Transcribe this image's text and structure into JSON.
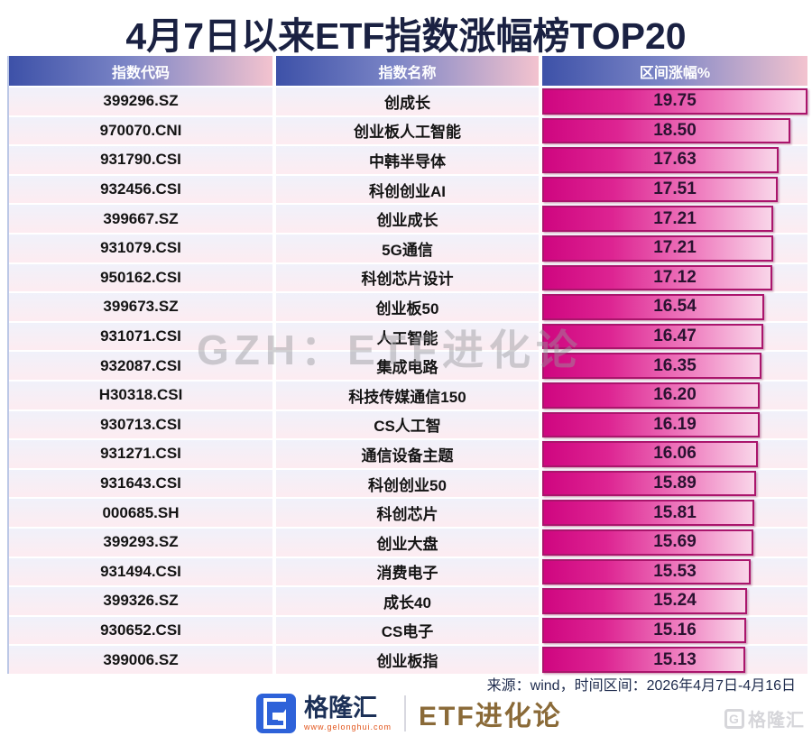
{
  "title": "4月7日以来ETF指数涨幅榜TOP20",
  "table": {
    "headers": [
      "指数代码",
      "指数名称",
      "区间涨幅%"
    ],
    "rows": [
      {
        "code": "399296.SZ",
        "name": "创成长",
        "value": "19.75"
      },
      {
        "code": "970070.CNI",
        "name": "创业板人工智能",
        "value": "18.50"
      },
      {
        "code": "931790.CSI",
        "name": "中韩半导体",
        "value": "17.63"
      },
      {
        "code": "932456.CSI",
        "name": "科创创业AI",
        "value": "17.51"
      },
      {
        "code": "399667.SZ",
        "name": "创业成长",
        "value": "17.21"
      },
      {
        "code": "931079.CSI",
        "name": "5G通信",
        "value": "17.21"
      },
      {
        "code": "950162.CSI",
        "name": "科创芯片设计",
        "value": "17.12"
      },
      {
        "code": "399673.SZ",
        "name": "创业板50",
        "value": "16.54"
      },
      {
        "code": "931071.CSI",
        "name": "人工智能",
        "value": "16.47"
      },
      {
        "code": "932087.CSI",
        "name": "集成电路",
        "value": "16.35"
      },
      {
        "code": "H30318.CSI",
        "name": "科技传媒通信150",
        "value": "16.20"
      },
      {
        "code": "930713.CSI",
        "name": "CS人工智",
        "value": "16.19"
      },
      {
        "code": "931271.CSI",
        "name": "通信设备主题",
        "value": "16.06"
      },
      {
        "code": "931643.CSI",
        "name": "科创创业50",
        "value": "15.89"
      },
      {
        "code": "000685.SH",
        "name": "科创芯片",
        "value": "15.81"
      },
      {
        "code": "399293.SZ",
        "name": "创业大盘",
        "value": "15.69"
      },
      {
        "code": "931494.CSI",
        "name": "消费电子",
        "value": "15.53"
      },
      {
        "code": "399326.SZ",
        "name": "成长40",
        "value": "15.24"
      },
      {
        "code": "930652.CSI",
        "name": "CS电子",
        "value": "15.16"
      },
      {
        "code": "399006.SZ",
        "name": "创业板指",
        "value": "15.13"
      }
    ]
  },
  "watermark": "GZH：ETF进化论",
  "footer": {
    "source": "来源：wind，时间区间：2026年4月7日-4月16日",
    "brand": "格隆汇",
    "brand_url": "www.gelonghui.com",
    "series_name": "ETF进化论",
    "corner_brand": "格隆汇"
  },
  "colors": {
    "title_text": "#1a2142",
    "header_gradient_left": "#3d51a8",
    "header_gradient_right": "#f3c3cf",
    "bar_deep": "#cf0680",
    "bar_light": "#f9d6e9",
    "bar_border": "#aa156c",
    "value_text": "#2a1230",
    "brand_blue": "#2e62d9",
    "brand_gold": "#8a6a38",
    "brand_url_orange": "#e2541a"
  },
  "chart_data": {
    "type": "bar",
    "title": "4月7日以来ETF指数涨幅榜TOP20",
    "categories": [
      "创成长",
      "创业板人工智能",
      "中韩半导体",
      "科创创业AI",
      "创业成长",
      "5G通信",
      "科创芯片设计",
      "创业板50",
      "人工智能",
      "集成电路",
      "科技传媒通信150",
      "CS人工智",
      "通信设备主题",
      "科创创业50",
      "科创芯片",
      "创业大盘",
      "消费电子",
      "成长40",
      "CS电子",
      "创业板指"
    ],
    "codes": [
      "399296.SZ",
      "970070.CNI",
      "931790.CSI",
      "932456.CSI",
      "399667.SZ",
      "931079.CSI",
      "950162.CSI",
      "399673.SZ",
      "931071.CSI",
      "932087.CSI",
      "H30318.CSI",
      "930713.CSI",
      "931271.CSI",
      "931643.CSI",
      "000685.SH",
      "399293.SZ",
      "931494.CSI",
      "399326.SZ",
      "930652.CSI",
      "399006.SZ"
    ],
    "values": [
      19.75,
      18.5,
      17.63,
      17.51,
      17.21,
      17.21,
      17.12,
      16.54,
      16.47,
      16.35,
      16.2,
      16.19,
      16.06,
      15.89,
      15.81,
      15.69,
      15.53,
      15.24,
      15.16,
      15.13
    ],
    "xlabel": "区间涨幅%",
    "ylabel": "指数名称",
    "scale_max": 19.75,
    "orientation": "horizontal",
    "grid": false,
    "legend": false
  }
}
